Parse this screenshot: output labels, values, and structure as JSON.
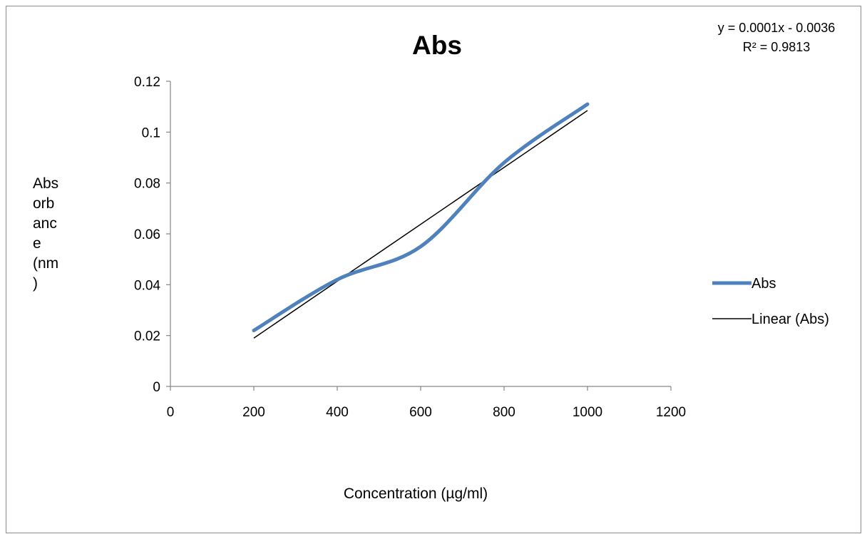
{
  "chart_data": {
    "type": "line",
    "title": "Abs",
    "xlabel": "Concentration (µg/ml)",
    "ylabel_lines": [
      "Abs",
      "orb",
      "anc",
      "e",
      "(nm",
      ")"
    ],
    "xlim": [
      0,
      1200
    ],
    "ylim": [
      0,
      0.12
    ],
    "x_ticks": [
      0,
      200,
      400,
      600,
      800,
      1000,
      1200
    ],
    "y_ticks": [
      0,
      0.02,
      0.04,
      0.06,
      0.08,
      0.1,
      0.12
    ],
    "x_tick_labels": [
      "0",
      "200",
      "400",
      "600",
      "800",
      "1000",
      "1200"
    ],
    "y_tick_labels": [
      "0",
      "0.02",
      "0.04",
      "0.06",
      "0.08",
      "0.1",
      "0.12"
    ],
    "grid": false,
    "legend_position": "right",
    "series": [
      {
        "name": "Abs",
        "x": [
          200,
          400,
          600,
          800,
          1000
        ],
        "values": [
          0.022,
          0.042,
          0.055,
          0.088,
          0.111
        ],
        "color": "#4f81bd",
        "smooth": true
      }
    ],
    "trendline": {
      "name": "Linear (Abs)",
      "type": "linear",
      "x_range": [
        200,
        1000
      ],
      "y_range": [
        0.019,
        0.1085
      ],
      "color": "#000000",
      "equation": "y = 0.0001x - 0.0036",
      "r_squared": "R² = 0.9813"
    }
  }
}
